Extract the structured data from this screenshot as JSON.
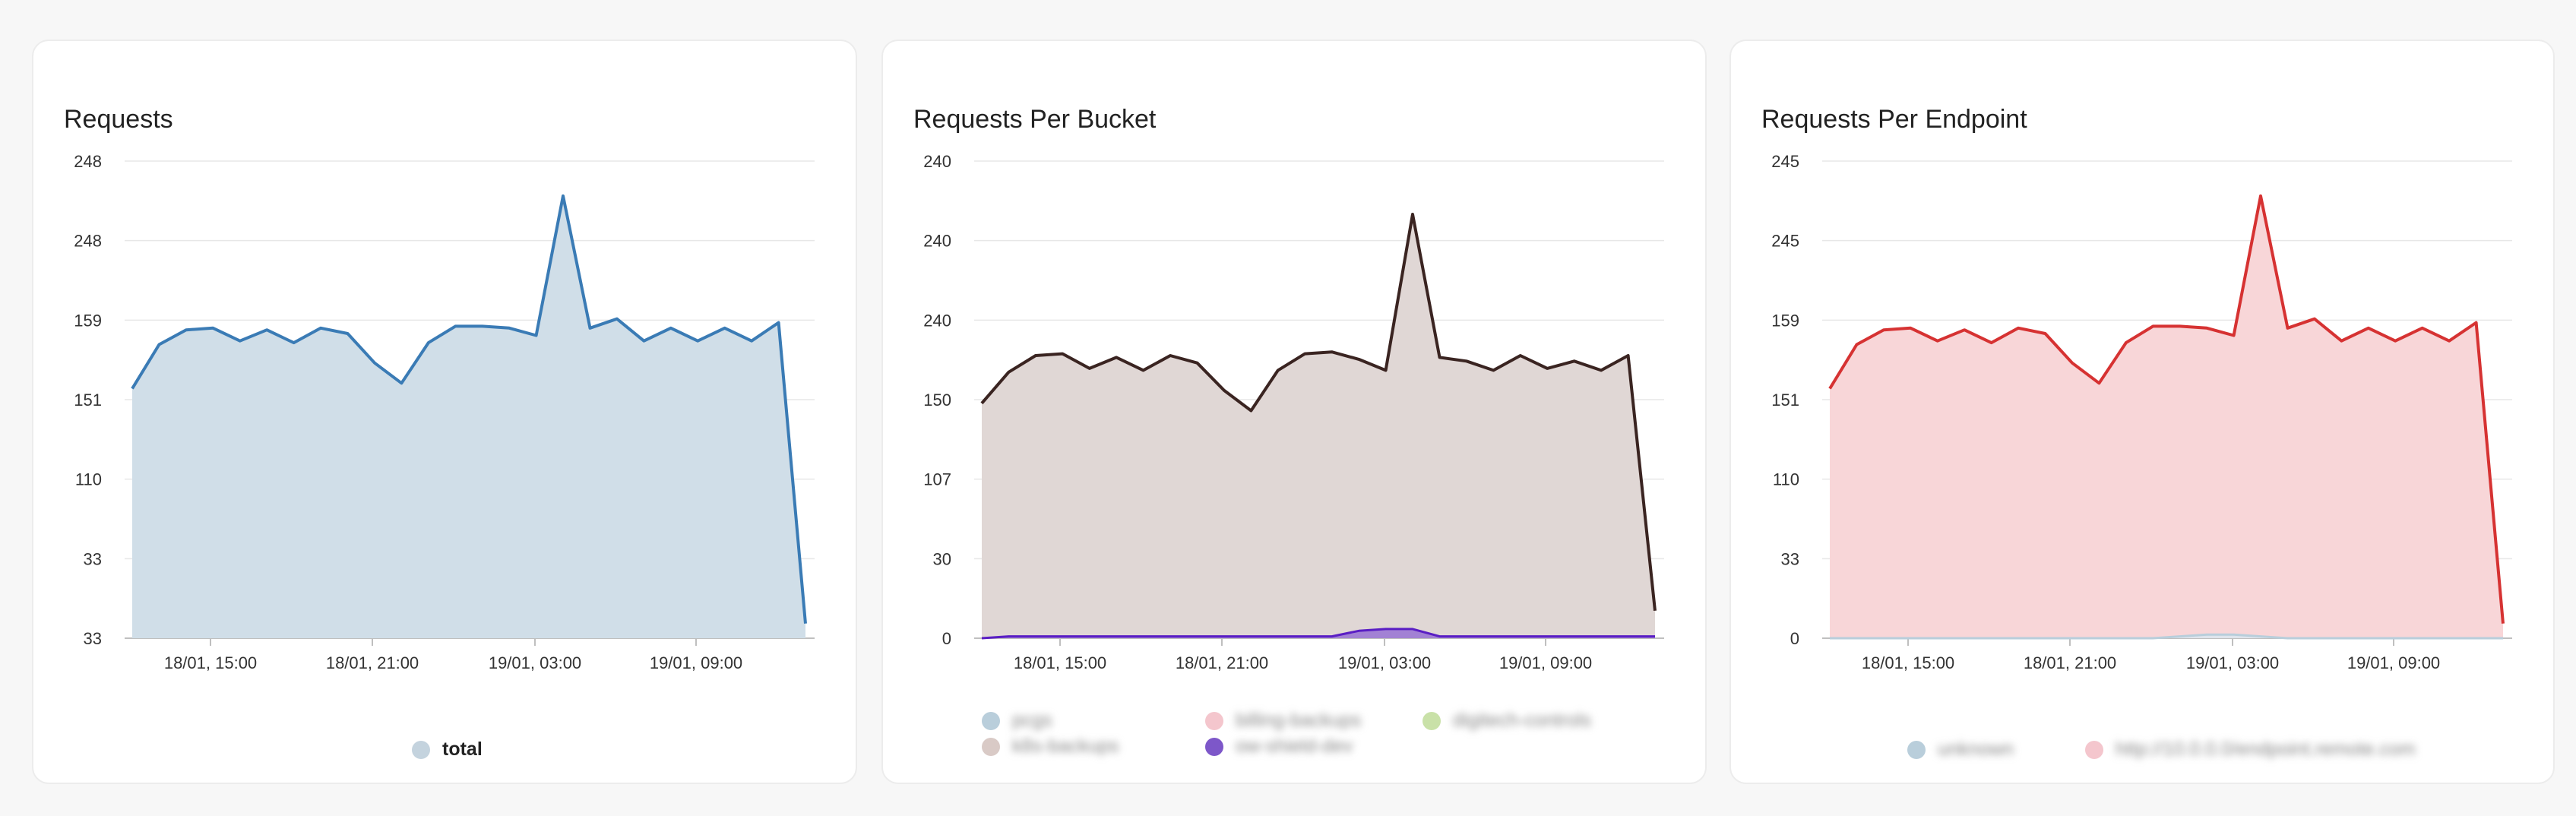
{
  "panels": [
    {
      "title": "Requests",
      "colors": {
        "line": "#3a7bb5",
        "fill": "#d0dee8"
      },
      "legend": [
        {
          "label": "total",
          "color": "#c4d3de",
          "blurred": false
        }
      ]
    },
    {
      "title": "Requests Per Bucket",
      "colors": {
        "line": "#3a2421",
        "fill": "#e0d7d5",
        "small_line": "#5a1ec4",
        "small_fill": "#9b78d4"
      },
      "legend": [
        {
          "label": "pcgs",
          "color": "#b9cedb",
          "blurred": true
        },
        {
          "label": "billing-backups",
          "color": "#f4c6cd",
          "blurred": true
        },
        {
          "label": "digitech-controls",
          "color": "#c9e1a8",
          "blurred": true
        },
        {
          "label": "k8s-backups",
          "color": "#d9cac6",
          "blurred": true
        },
        {
          "label": "ow-shield-dev",
          "color": "#7d57c9",
          "blurred": true
        }
      ]
    },
    {
      "title": "Requests Per Endpoint",
      "colors": {
        "line": "#d63232",
        "fill": "#f8d6d8"
      },
      "legend": [
        {
          "label": "unknown",
          "color": "#b9cedb",
          "blurred": true
        },
        {
          "label": "http://10.0.0.0/endpoint.remote.com",
          "color": "#f4c6cd",
          "blurred": true
        }
      ]
    }
  ],
  "chart_data": [
    {
      "type": "area",
      "title": "Requests",
      "x_ticks": [
        "18/01, 15:00",
        "18/01, 21:00",
        "19/01, 03:00",
        "19/01, 09:00"
      ],
      "y_ticks": [
        "33",
        "33",
        "110",
        "151",
        "159",
        "248",
        "248"
      ],
      "grid": true,
      "legend_position": "bottom",
      "series": [
        {
          "name": "total",
          "values": [
            136,
            160,
            168,
            169,
            162,
            168,
            161,
            169,
            166,
            150,
            139,
            161,
            170,
            170,
            169,
            165,
            241,
            169,
            174,
            162,
            169,
            162,
            169,
            162,
            172,
            8
          ]
        }
      ]
    },
    {
      "type": "area",
      "title": "Requests Per Bucket",
      "x_ticks": [
        "18/01, 15:00",
        "18/01, 21:00",
        "19/01, 03:00",
        "19/01, 09:00"
      ],
      "y_ticks": [
        "0",
        "30",
        "107",
        "150",
        "240",
        "240",
        "240"
      ],
      "grid": true,
      "legend_position": "bottom",
      "series": [
        {
          "name": "k8s-backups",
          "values": [
            128,
            145,
            154,
            155,
            147,
            153,
            146,
            154,
            150,
            135,
            124,
            146,
            155,
            156,
            152,
            146,
            231,
            153,
            151,
            146,
            154,
            147,
            151,
            146,
            154,
            15
          ]
        },
        {
          "name": "ow-shield-dev",
          "values": [
            0,
            1,
            1,
            1,
            1,
            1,
            1,
            1,
            1,
            1,
            1,
            1,
            1,
            1,
            4,
            5,
            5,
            1,
            1,
            1,
            1,
            1,
            1,
            1,
            1,
            1
          ]
        }
      ]
    },
    {
      "type": "area",
      "title": "Requests Per Endpoint",
      "x_ticks": [
        "18/01, 15:00",
        "18/01, 21:00",
        "19/01, 03:00",
        "19/01, 09:00"
      ],
      "y_ticks": [
        "0",
        "33",
        "110",
        "151",
        "159",
        "245",
        "245"
      ],
      "grid": true,
      "legend_position": "bottom",
      "series": [
        {
          "name": "http://10.0.0.0/endpoint.remote.com",
          "values": [
            136,
            160,
            168,
            169,
            162,
            168,
            161,
            169,
            166,
            150,
            139,
            161,
            170,
            170,
            169,
            165,
            241,
            169,
            174,
            162,
            169,
            162,
            169,
            162,
            172,
            8
          ]
        },
        {
          "name": "unknown",
          "values": [
            0,
            0,
            0,
            0,
            0,
            0,
            0,
            0,
            0,
            0,
            0,
            0,
            0,
            1,
            2,
            2,
            1,
            0,
            0,
            0,
            0,
            0,
            0,
            0,
            0,
            0
          ]
        }
      ]
    }
  ]
}
